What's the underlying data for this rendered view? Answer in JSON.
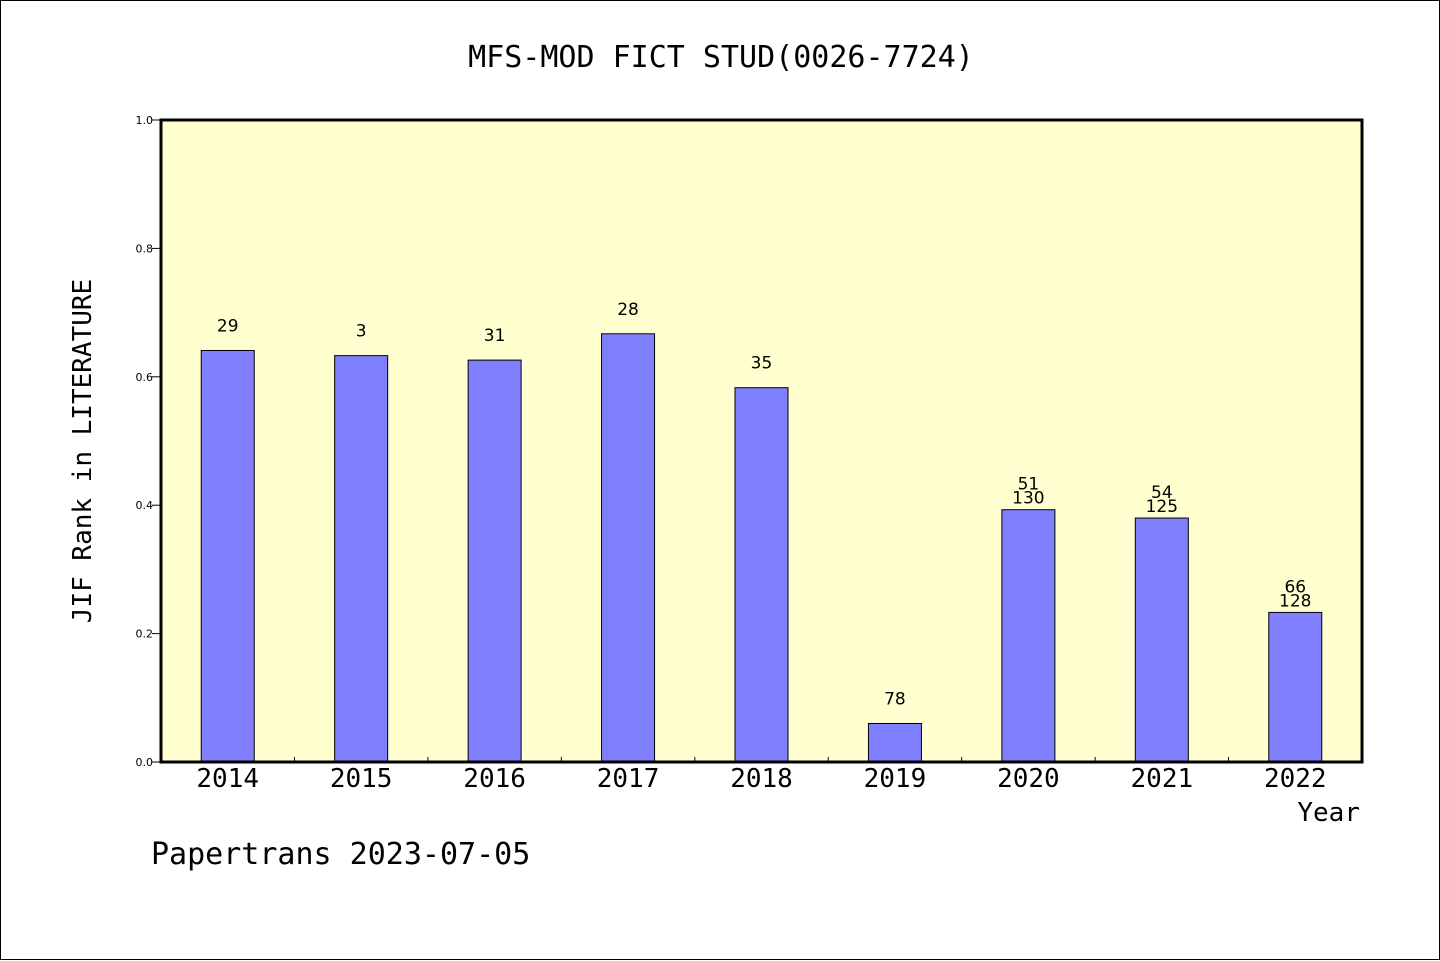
{
  "chart_data": {
    "type": "bar",
    "title": "MFS-MOD FICT STUD(0026-7724)",
    "xlabel": "Year",
    "ylabel": "JIF Rank in LITERATURE",
    "footer": "Papertrans 2023-07-05",
    "ylim": [
      0,
      1.0
    ],
    "yticks": [
      "0.0",
      "0.2",
      "0.4",
      "0.6",
      "0.8",
      "1.0"
    ],
    "categories": [
      "2014",
      "2015",
      "2016",
      "2017",
      "2018",
      "2019",
      "2020",
      "2021",
      "2022"
    ],
    "values": [
      0.641,
      0.633,
      0.626,
      0.667,
      0.583,
      0.06,
      0.393,
      0.38,
      0.233
    ],
    "labels": [
      [
        "29"
      ],
      [
        "3"
      ],
      [
        "31"
      ],
      [
        "28"
      ],
      [
        "35"
      ],
      [
        "78"
      ],
      [
        "51",
        "130"
      ],
      [
        "54",
        "125"
      ],
      [
        "66",
        "128"
      ]
    ],
    "grid": false,
    "colors": {
      "plot_background": "#ffffd0",
      "bar_fill": "#8080ff",
      "axis": "#000000"
    }
  }
}
